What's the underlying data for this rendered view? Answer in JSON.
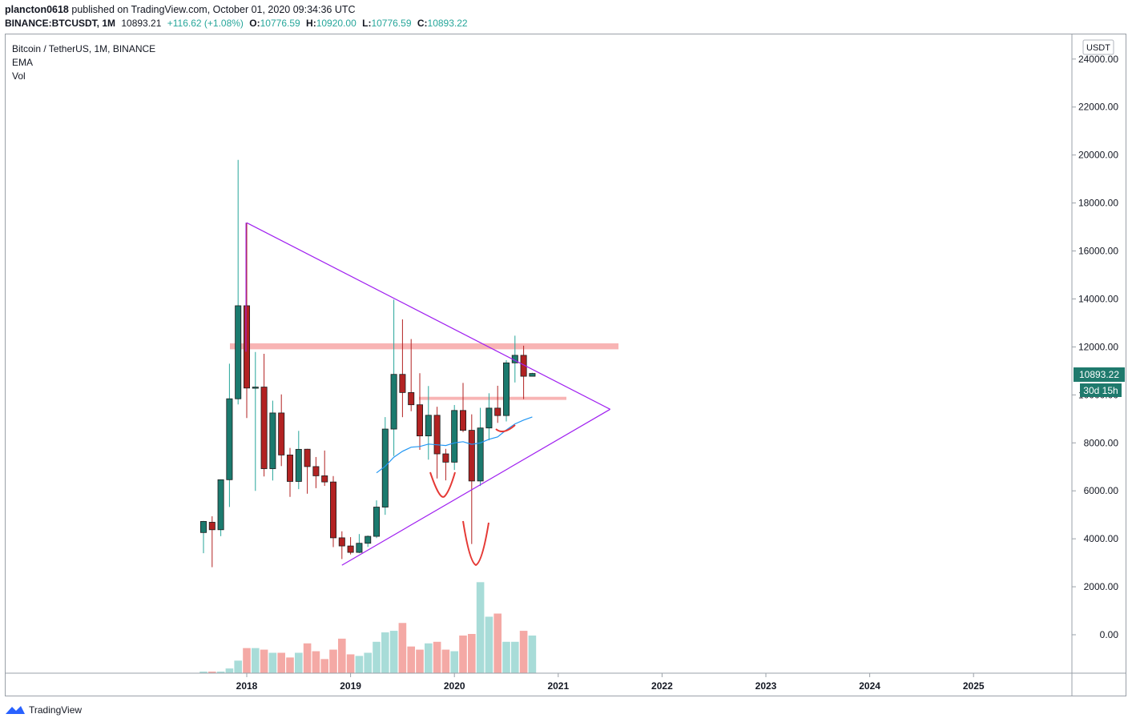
{
  "header": {
    "author": "plancton0618",
    "published_text": "published on TradingView.com, October 01, 2020 09:34:36 UTC",
    "symbol": "BINANCE:BTCUSDT, 1M",
    "last_price": "10893.21",
    "change": "+116.62 (+1.08%)",
    "o_label": "O:",
    "o_value": "10776.59",
    "h_label": "H:",
    "h_value": "10920.00",
    "l_label": "L:",
    "l_value": "10776.59",
    "c_label": "C:",
    "c_value": "10893.22"
  },
  "legend": {
    "title": "Bitcoin / TetherUS, 1M, BINANCE",
    "ema": "EMA",
    "vol": "Vol"
  },
  "price_axis": {
    "currency": "USDT",
    "ticks": [
      "24000.00",
      "22000.00",
      "20000.00",
      "18000.00",
      "16000.00",
      "14000.00",
      "12000.00",
      "10000.00",
      "8000.00",
      "6000.00",
      "4000.00",
      "2000.00",
      "0.00"
    ],
    "last_price_tag": "10893.22",
    "countdown_tag": "30d 15h"
  },
  "time_axis": {
    "ticks": [
      "2018",
      "2019",
      "2020",
      "2021",
      "2022",
      "2023",
      "2024",
      "2025"
    ]
  },
  "brand": {
    "name": "TradingView"
  },
  "colors": {
    "up": "#26a69a",
    "up_body": "#1b7a6e",
    "down": "#b22222",
    "up_vol": "#a8dcd8",
    "down_vol": "#f4a9a5",
    "triangle": "#a020f0",
    "zone": "#f8b4b4",
    "ema": "#2196f3",
    "annotation": "#e53935"
  },
  "chart_data": {
    "type": "candlestick",
    "symbol": "BTCUSDT",
    "interval": "1M",
    "ylim": [
      -1500,
      25000
    ],
    "candles": [
      {
        "t": "2017-08",
        "o": 4261,
        "h": 4745,
        "l": 3400,
        "c": 4724
      },
      {
        "t": "2017-09",
        "o": 4690,
        "h": 4939,
        "l": 2817,
        "c": 4378
      },
      {
        "t": "2017-10",
        "o": 4378,
        "h": 6470,
        "l": 4110,
        "c": 6463
      },
      {
        "t": "2017-11",
        "o": 6463,
        "h": 11300,
        "l": 5325,
        "c": 9838
      },
      {
        "t": "2017-12",
        "o": 9837,
        "h": 19798,
        "l": 9601,
        "c": 13716
      },
      {
        "t": "2018-01",
        "o": 13716,
        "h": 17176,
        "l": 9035,
        "c": 10285
      },
      {
        "t": "2018-02",
        "o": 10285,
        "h": 11786,
        "l": 6000,
        "c": 10326
      },
      {
        "t": "2018-03",
        "o": 10326,
        "h": 11711,
        "l": 6600,
        "c": 6923
      },
      {
        "t": "2018-04",
        "o": 6923,
        "h": 9759,
        "l": 6430,
        "c": 9246
      },
      {
        "t": "2018-05",
        "o": 9246,
        "h": 10020,
        "l": 7032,
        "c": 7494
      },
      {
        "t": "2018-06",
        "o": 7494,
        "h": 7786,
        "l": 5750,
        "c": 6391
      },
      {
        "t": "2018-07",
        "o": 6391,
        "h": 8500,
        "l": 6070,
        "c": 7730
      },
      {
        "t": "2018-08",
        "o": 7735,
        "h": 7750,
        "l": 5880,
        "c": 7011
      },
      {
        "t": "2018-09",
        "o": 7011,
        "h": 7410,
        "l": 6111,
        "c": 6626
      },
      {
        "t": "2018-10",
        "o": 6626,
        "h": 7680,
        "l": 6205,
        "c": 6371
      },
      {
        "t": "2018-11",
        "o": 6369,
        "h": 6615,
        "l": 3652,
        "c": 4041
      },
      {
        "t": "2018-12",
        "o": 4041,
        "h": 4312,
        "l": 3156,
        "c": 3702
      },
      {
        "t": "2019-01",
        "o": 3701,
        "h": 4069,
        "l": 3349,
        "c": 3434
      },
      {
        "t": "2019-02",
        "o": 3434,
        "h": 4198,
        "l": 3400,
        "c": 3814
      },
      {
        "t": "2019-03",
        "o": 3814,
        "h": 4140,
        "l": 3660,
        "c": 4103
      },
      {
        "t": "2019-04",
        "o": 4103,
        "h": 5600,
        "l": 4030,
        "c": 5321
      },
      {
        "t": "2019-05",
        "o": 5321,
        "h": 9074,
        "l": 5000,
        "c": 8575
      },
      {
        "t": "2019-06",
        "o": 8575,
        "h": 13970,
        "l": 7451,
        "c": 10855
      },
      {
        "t": "2019-07",
        "o": 10855,
        "h": 13147,
        "l": 9071,
        "c": 10098
      },
      {
        "t": "2019-08",
        "o": 10098,
        "h": 12327,
        "l": 9320,
        "c": 9588
      },
      {
        "t": "2019-09",
        "o": 9588,
        "h": 10905,
        "l": 7710,
        "c": 8289
      },
      {
        "t": "2019-10",
        "o": 8289,
        "h": 10370,
        "l": 7300,
        "c": 9150
      },
      {
        "t": "2019-11",
        "o": 9150,
        "h": 9505,
        "l": 6515,
        "c": 7541
      },
      {
        "t": "2019-12",
        "o": 7541,
        "h": 7750,
        "l": 6435,
        "c": 7195
      },
      {
        "t": "2020-01",
        "o": 7195,
        "h": 9578,
        "l": 6871,
        "c": 9350
      },
      {
        "t": "2020-02",
        "o": 9350,
        "h": 10500,
        "l": 8445,
        "c": 8523
      },
      {
        "t": "2020-03",
        "o": 8523,
        "h": 9188,
        "l": 3782,
        "c": 6410
      },
      {
        "t": "2020-04",
        "o": 6410,
        "h": 9460,
        "l": 6202,
        "c": 8620
      },
      {
        "t": "2020-05",
        "o": 8620,
        "h": 10067,
        "l": 8106,
        "c": 9448
      },
      {
        "t": "2020-06",
        "o": 9448,
        "h": 10380,
        "l": 8833,
        "c": 9138
      },
      {
        "t": "2020-07",
        "o": 9138,
        "h": 11444,
        "l": 8893,
        "c": 11335
      },
      {
        "t": "2020-08",
        "o": 11335,
        "h": 12468,
        "l": 10518,
        "c": 11649
      },
      {
        "t": "2020-09",
        "o": 11649,
        "h": 12050,
        "l": 9825,
        "c": 10776
      },
      {
        "t": "2020-10",
        "o": 10776,
        "h": 10920,
        "l": 10776,
        "c": 10893
      }
    ],
    "volume": [
      0.1,
      0.1,
      0.1,
      0.3,
      0.8,
      1.6,
      1.6,
      1.5,
      1.3,
      1.3,
      1.0,
      1.3,
      1.9,
      1.4,
      0.9,
      1.5,
      2.2,
      1.2,
      1.1,
      1.3,
      2.0,
      2.6,
      2.7,
      3.2,
      1.7,
      1.5,
      1.9,
      2.0,
      1.5,
      1.4,
      2.4,
      2.5,
      5.8,
      3.6,
      3.8,
      2.0,
      2.0,
      2.7,
      2.4,
      0.1
    ],
    "ema": [
      {
        "t": "2019-04",
        "v": 6750
      },
      {
        "t": "2019-05",
        "v": 7020
      },
      {
        "t": "2019-06",
        "v": 7400
      },
      {
        "t": "2019-07",
        "v": 7650
      },
      {
        "t": "2019-08",
        "v": 7820
      },
      {
        "t": "2019-09",
        "v": 7850
      },
      {
        "t": "2019-10",
        "v": 7950
      },
      {
        "t": "2019-11",
        "v": 7920
      },
      {
        "t": "2019-12",
        "v": 7890
      },
      {
        "t": "2020-01",
        "v": 8000
      },
      {
        "t": "2020-02",
        "v": 8050
      },
      {
        "t": "2020-03",
        "v": 7940
      },
      {
        "t": "2020-04",
        "v": 8000
      },
      {
        "t": "2020-05",
        "v": 8150
      },
      {
        "t": "2020-06",
        "v": 8250
      },
      {
        "t": "2020-07",
        "v": 8540
      },
      {
        "t": "2020-08",
        "v": 8790
      },
      {
        "t": "2020-09",
        "v": 8950
      },
      {
        "t": "2020-10",
        "v": 9080
      }
    ],
    "drawings": {
      "triangle_upper": [
        {
          "t": "2018-01",
          "v": 17176
        },
        {
          "t": "2021-07",
          "v": 9400
        }
      ],
      "triangle_lower": [
        {
          "t": "2018-12",
          "v": 2900
        },
        {
          "t": "2021-07",
          "v": 9400
        }
      ],
      "resistance_zone": {
        "from": "2017-11",
        "to": "2021-05",
        "y0": 11900,
        "y1": 12150
      },
      "support_zone": {
        "from": "2019-08",
        "to": "2021-01",
        "y0": 9790,
        "y1": 9920
      }
    }
  }
}
